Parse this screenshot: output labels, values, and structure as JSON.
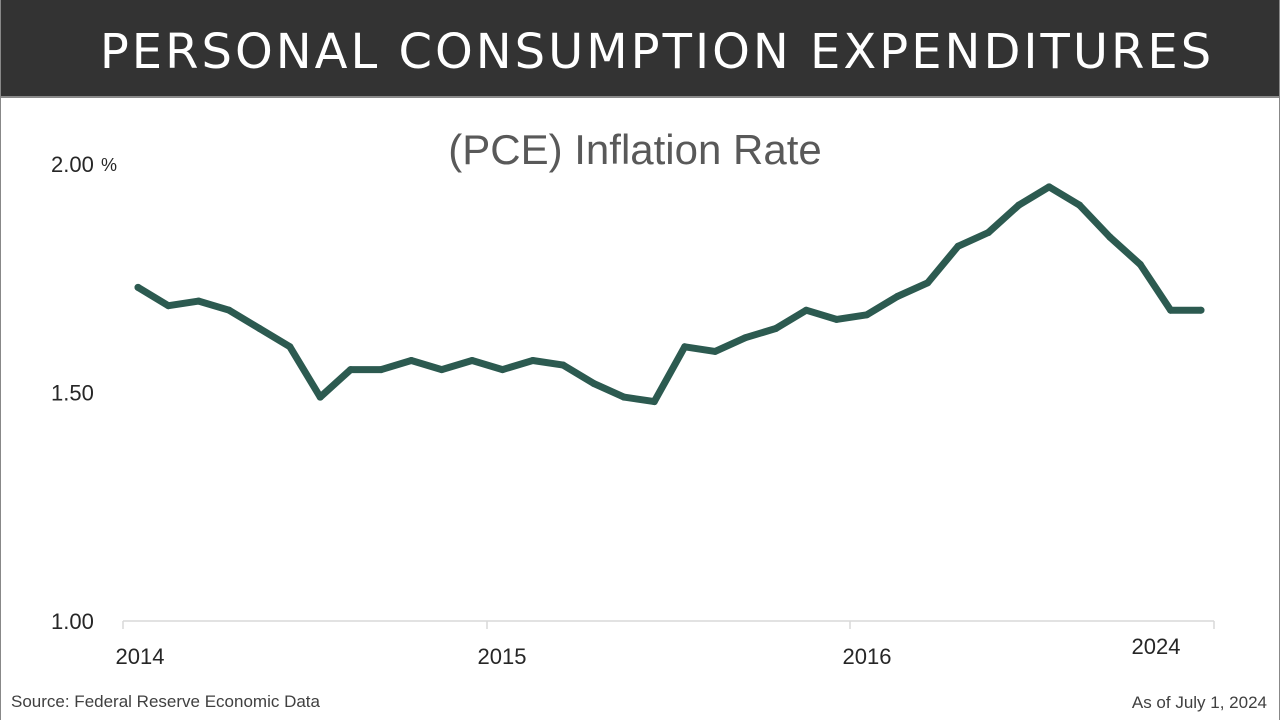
{
  "header": {
    "title": "PERSONAL CONSUMPTION EXPENDITURES"
  },
  "chart_data": {
    "type": "line",
    "title": "(PCE) Inflation Rate",
    "xlabel": "",
    "ylabel": "",
    "y_ticks": [
      "2.00",
      "1.50",
      "1.00"
    ],
    "y_tick_values": [
      2.0,
      1.5,
      1.0
    ],
    "y_unit_label": "%",
    "ylim": [
      1.0,
      2.0
    ],
    "x_tick_labels": [
      "2014",
      "2015",
      "2016",
      "2024"
    ],
    "grid": false,
    "legend": "none",
    "line_color": "#2c5a50",
    "series": [
      {
        "values": [
          1.73,
          1.69,
          1.7,
          1.68,
          1.64,
          1.6,
          1.49,
          1.55,
          1.55,
          1.57,
          1.55,
          1.57,
          1.55,
          1.57,
          1.56,
          1.52,
          1.49,
          1.48,
          1.6,
          1.59,
          1.62,
          1.64,
          1.68,
          1.66,
          1.67,
          1.71,
          1.74,
          1.82,
          1.85,
          1.91,
          1.95,
          1.91,
          1.84,
          1.78,
          1.68,
          1.68
        ]
      }
    ]
  },
  "footer": {
    "source": "Source: Federal Reserve Economic Data",
    "as_of": "As of July 1, 2024"
  },
  "colors": {
    "header_bg": "#333333",
    "header_text": "#ffffff",
    "title_text": "#595959",
    "axis": "#d9d9d9",
    "line": "#2c5a50"
  }
}
